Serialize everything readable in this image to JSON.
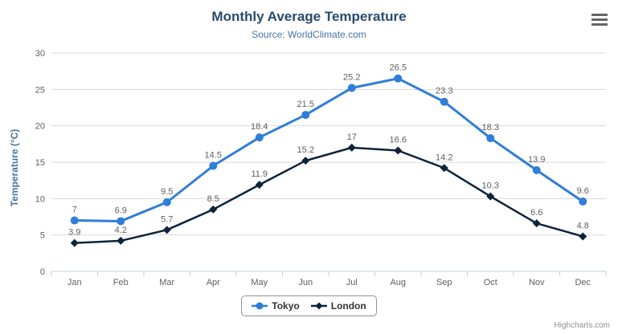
{
  "chart": {
    "title": "Monthly Average Temperature",
    "subtitle": "Source: WorldClimate.com",
    "credits": "Highcharts.com",
    "export_menu_icon": "hamburger-icon"
  },
  "chart_data": {
    "type": "line",
    "title": "Monthly Average Temperature",
    "subtitle": "Source: WorldClimate.com",
    "xlabel": "",
    "ylabel": "Temperature (°C)",
    "categories": [
      "Jan",
      "Feb",
      "Mar",
      "Apr",
      "May",
      "Jun",
      "Jul",
      "Aug",
      "Sep",
      "Oct",
      "Nov",
      "Dec"
    ],
    "series": [
      {
        "name": "Tokyo",
        "color": "#2f7ed8",
        "marker": "circle",
        "values": [
          7,
          6.9,
          9.5,
          14.5,
          18.4,
          21.5,
          25.2,
          26.5,
          23.3,
          18.3,
          13.9,
          9.6
        ]
      },
      {
        "name": "London",
        "color": "#0d233a",
        "marker": "diamond",
        "values": [
          3.9,
          4.2,
          5.7,
          8.5,
          11.9,
          15.2,
          17,
          16.6,
          14.2,
          10.3,
          6.6,
          4.8
        ]
      }
    ],
    "ylim": [
      0,
      30
    ],
    "ytick_interval": 5,
    "grid": true,
    "data_labels": true,
    "legend_position": "bottom"
  },
  "colors": {
    "title": "#274b6d",
    "subtitle": "#4572a7",
    "axis_title": "#4572a7",
    "tick_label": "#606060",
    "data_label": "#606060",
    "gridline": "#d8d8d8",
    "axis_line": "#c0d0e0",
    "legend_border": "#909090",
    "legend_text": "#333333",
    "credits": "#909090",
    "menu_icon": "#666666"
  }
}
